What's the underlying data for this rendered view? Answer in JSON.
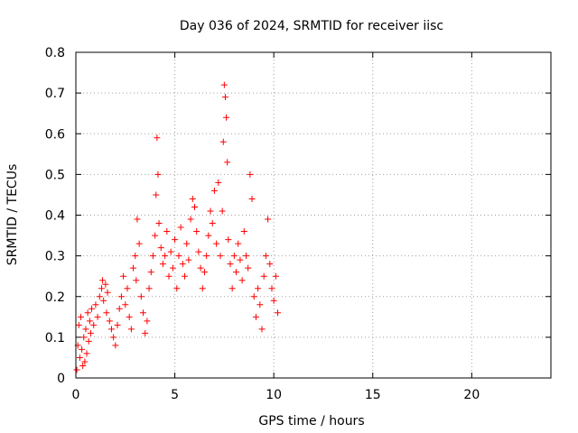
{
  "chart_data": {
    "type": "scatter",
    "title": "Day 036 of 2024, SRMTID for receiver iisc",
    "xlabel": "GPS time / hours",
    "ylabel": "SRMTID / TECUs",
    "xlim": [
      0,
      24
    ],
    "ylim": [
      0,
      0.8
    ],
    "xticks": [
      0,
      5,
      10,
      15,
      20
    ],
    "xtick_labels": [
      "0",
      "5",
      "10",
      "15",
      "20"
    ],
    "yticks": [
      0,
      0.1,
      0.2,
      0.3,
      0.4,
      0.5,
      0.6,
      0.7,
      0.8
    ],
    "ytick_labels": [
      "0",
      "0.1",
      "0.2",
      "0.3",
      "0.4",
      "0.5",
      "0.6",
      "0.7",
      "0.8"
    ],
    "grid": true,
    "marker": "plus",
    "color": "#ff0000",
    "series": [
      {
        "name": "SRMTID",
        "points": [
          [
            0.05,
            0.02
          ],
          [
            0.1,
            0.08
          ],
          [
            0.15,
            0.13
          ],
          [
            0.2,
            0.05
          ],
          [
            0.25,
            0.15
          ],
          [
            0.3,
            0.07
          ],
          [
            0.35,
            0.03
          ],
          [
            0.4,
            0.1
          ],
          [
            0.45,
            0.04
          ],
          [
            0.5,
            0.12
          ],
          [
            0.55,
            0.06
          ],
          [
            0.6,
            0.16
          ],
          [
            0.65,
            0.09
          ],
          [
            0.7,
            0.14
          ],
          [
            0.75,
            0.11
          ],
          [
            0.8,
            0.17
          ],
          [
            0.9,
            0.13
          ],
          [
            1.0,
            0.18
          ],
          [
            1.1,
            0.15
          ],
          [
            1.2,
            0.2
          ],
          [
            1.3,
            0.22
          ],
          [
            1.35,
            0.24
          ],
          [
            1.4,
            0.19
          ],
          [
            1.5,
            0.23
          ],
          [
            1.55,
            0.16
          ],
          [
            1.6,
            0.21
          ],
          [
            1.7,
            0.14
          ],
          [
            1.8,
            0.12
          ],
          [
            1.9,
            0.1
          ],
          [
            2.0,
            0.08
          ],
          [
            2.1,
            0.13
          ],
          [
            2.2,
            0.17
          ],
          [
            2.3,
            0.2
          ],
          [
            2.4,
            0.25
          ],
          [
            2.5,
            0.18
          ],
          [
            2.6,
            0.22
          ],
          [
            2.7,
            0.15
          ],
          [
            2.8,
            0.12
          ],
          [
            2.9,
            0.27
          ],
          [
            3.0,
            0.3
          ],
          [
            3.05,
            0.24
          ],
          [
            3.1,
            0.39
          ],
          [
            3.2,
            0.33
          ],
          [
            3.3,
            0.2
          ],
          [
            3.4,
            0.16
          ],
          [
            3.5,
            0.11
          ],
          [
            3.6,
            0.14
          ],
          [
            3.7,
            0.22
          ],
          [
            3.8,
            0.26
          ],
          [
            3.9,
            0.3
          ],
          [
            4.0,
            0.35
          ],
          [
            4.05,
            0.45
          ],
          [
            4.1,
            0.59
          ],
          [
            4.15,
            0.5
          ],
          [
            4.2,
            0.38
          ],
          [
            4.3,
            0.32
          ],
          [
            4.4,
            0.28
          ],
          [
            4.5,
            0.3
          ],
          [
            4.6,
            0.36
          ],
          [
            4.7,
            0.25
          ],
          [
            4.8,
            0.31
          ],
          [
            4.9,
            0.27
          ],
          [
            5.0,
            0.34
          ],
          [
            5.1,
            0.22
          ],
          [
            5.2,
            0.3
          ],
          [
            5.3,
            0.37
          ],
          [
            5.4,
            0.28
          ],
          [
            5.5,
            0.25
          ],
          [
            5.6,
            0.33
          ],
          [
            5.7,
            0.29
          ],
          [
            5.8,
            0.39
          ],
          [
            5.9,
            0.44
          ],
          [
            6.0,
            0.42
          ],
          [
            6.1,
            0.36
          ],
          [
            6.2,
            0.31
          ],
          [
            6.3,
            0.27
          ],
          [
            6.4,
            0.22
          ],
          [
            6.5,
            0.26
          ],
          [
            6.6,
            0.3
          ],
          [
            6.7,
            0.35
          ],
          [
            6.8,
            0.41
          ],
          [
            6.9,
            0.38
          ],
          [
            7.0,
            0.46
          ],
          [
            7.1,
            0.33
          ],
          [
            7.2,
            0.48
          ],
          [
            7.3,
            0.3
          ],
          [
            7.4,
            0.41
          ],
          [
            7.45,
            0.58
          ],
          [
            7.5,
            0.72
          ],
          [
            7.55,
            0.69
          ],
          [
            7.6,
            0.64
          ],
          [
            7.65,
            0.53
          ],
          [
            7.7,
            0.34
          ],
          [
            7.8,
            0.28
          ],
          [
            7.9,
            0.22
          ],
          [
            8.0,
            0.3
          ],
          [
            8.1,
            0.26
          ],
          [
            8.2,
            0.33
          ],
          [
            8.3,
            0.29
          ],
          [
            8.4,
            0.24
          ],
          [
            8.5,
            0.36
          ],
          [
            8.6,
            0.3
          ],
          [
            8.7,
            0.27
          ],
          [
            8.8,
            0.5
          ],
          [
            8.9,
            0.44
          ],
          [
            9.0,
            0.2
          ],
          [
            9.1,
            0.15
          ],
          [
            9.2,
            0.22
          ],
          [
            9.3,
            0.18
          ],
          [
            9.4,
            0.12
          ],
          [
            9.5,
            0.25
          ],
          [
            9.6,
            0.3
          ],
          [
            9.7,
            0.39
          ],
          [
            9.8,
            0.28
          ],
          [
            9.9,
            0.22
          ],
          [
            10.0,
            0.19
          ],
          [
            10.1,
            0.25
          ],
          [
            10.2,
            0.16
          ]
        ]
      }
    ]
  }
}
